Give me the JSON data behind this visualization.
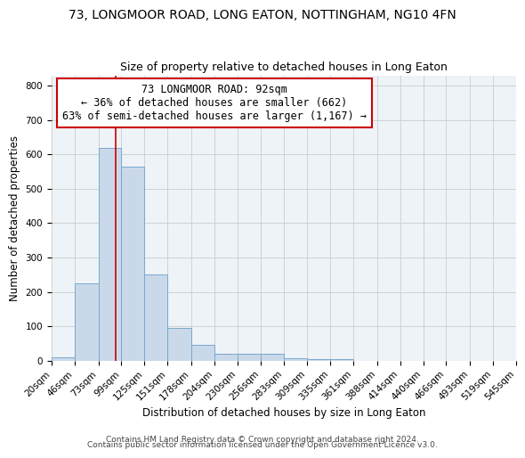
{
  "title1": "73, LONGMOOR ROAD, LONG EATON, NOTTINGHAM, NG10 4FN",
  "title2": "Size of property relative to detached houses in Long Eaton",
  "xlabel": "Distribution of detached houses by size in Long Eaton",
  "ylabel": "Number of detached properties",
  "bar_edges": [
    20,
    46,
    73,
    99,
    125,
    151,
    178,
    204,
    230,
    256,
    283,
    309,
    335,
    361,
    388,
    414,
    440,
    466,
    493,
    519,
    545
  ],
  "bar_heights": [
    10,
    225,
    620,
    565,
    250,
    95,
    45,
    20,
    20,
    20,
    8,
    5,
    5,
    0,
    0,
    0,
    0,
    0,
    0,
    0
  ],
  "bar_color": "#c9d9ea",
  "bar_edgecolor": "#7aa8cc",
  "property_line_x": 92,
  "property_line_color": "#cc0000",
  "annotation_text": "73 LONGMOOR ROAD: 92sqm\n← 36% of detached houses are smaller (662)\n63% of semi-detached houses are larger (1,167) →",
  "annotation_box_edgecolor": "#cc0000",
  "annotation_box_facecolor": "#ffffff",
  "ylim": [
    0,
    830
  ],
  "yticks": [
    0,
    100,
    200,
    300,
    400,
    500,
    600,
    700,
    800
  ],
  "grid_color": "#cccccc",
  "bg_color": "#eef3f8",
  "footer1": "Contains HM Land Registry data © Crown copyright and database right 2024.",
  "footer2": "Contains public sector information licensed under the Open Government Licence v3.0.",
  "title1_fontsize": 10,
  "title2_fontsize": 9,
  "xlabel_fontsize": 8.5,
  "ylabel_fontsize": 8.5,
  "tick_fontsize": 7.5,
  "annotation_fontsize": 8.5,
  "footer_fontsize": 6.5
}
